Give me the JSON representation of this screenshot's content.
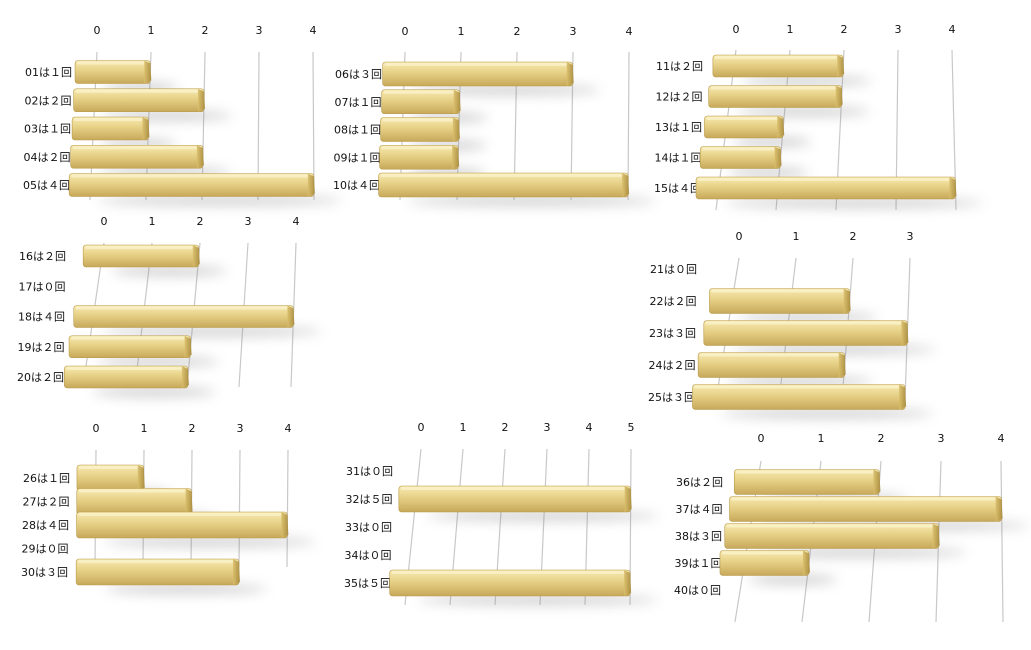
{
  "colors": {
    "bar_light": "#F5E6A6",
    "bar_mid": "#E2CC7A",
    "bar_dark": "#B99A49",
    "grid": "#C8C8C8",
    "shadow": "#7a7a7a",
    "text": "#111111"
  },
  "chart_data": [
    {
      "type": "bar",
      "orientation": "horizontal",
      "categories": [
        "01は１回",
        "02は２回",
        "03は１回",
        "04は２回",
        "05は４回"
      ],
      "values": [
        1,
        2,
        1,
        2,
        4
      ],
      "xlim": [
        0,
        4
      ],
      "ticks": [
        "0",
        "1",
        "2",
        "3",
        "4"
      ]
    },
    {
      "type": "bar",
      "orientation": "horizontal",
      "categories": [
        "06は３回",
        "07は１回",
        "08は１回",
        "09は１回",
        "10は４回"
      ],
      "values": [
        3,
        1,
        1,
        1,
        4
      ],
      "xlim": [
        0,
        4
      ],
      "ticks": [
        "0",
        "1",
        "2",
        "3",
        "4"
      ]
    },
    {
      "type": "bar",
      "orientation": "horizontal",
      "categories": [
        "11は２回",
        "12は２回",
        "13は１回",
        "14は１回",
        "15は４回"
      ],
      "values": [
        2,
        2,
        1,
        1,
        4
      ],
      "xlim": [
        0,
        4
      ],
      "ticks": [
        "0",
        "1",
        "2",
        "3",
        "4"
      ]
    },
    {
      "type": "bar",
      "orientation": "horizontal",
      "categories": [
        "16は２回",
        "17は０回",
        "18は４回",
        "19は２回",
        "20は２回"
      ],
      "values": [
        2,
        0,
        4,
        2,
        2
      ],
      "xlim": [
        0,
        4
      ],
      "ticks": [
        "0",
        "1",
        "2",
        "3",
        "4"
      ]
    },
    {
      "type": "bar",
      "orientation": "horizontal",
      "categories": [
        "21は０回",
        "22は２回",
        "23は３回",
        "24は２回",
        "25は３回"
      ],
      "values": [
        0,
        2,
        3,
        2,
        3
      ],
      "xlim": [
        0,
        3
      ],
      "ticks": [
        "0",
        "1",
        "2",
        "3"
      ]
    },
    {
      "type": "bar",
      "orientation": "horizontal",
      "categories": [
        "26は１回",
        "27は２回",
        "28は４回",
        "29は０回",
        "30は３回"
      ],
      "values": [
        1,
        2,
        4,
        0,
        3
      ],
      "xlim": [
        0,
        4
      ],
      "ticks": [
        "0",
        "1",
        "2",
        "3",
        "4"
      ]
    },
    {
      "type": "bar",
      "orientation": "horizontal",
      "categories": [
        "31は０回",
        "32は５回",
        "33は０回",
        "34は０回",
        "35は５回"
      ],
      "values": [
        0,
        5,
        0,
        0,
        5
      ],
      "xlim": [
        0,
        5
      ],
      "ticks": [
        "0",
        "1",
        "2",
        "3",
        "4",
        "5"
      ]
    },
    {
      "type": "bar",
      "orientation": "horizontal",
      "categories": [
        "36は２回",
        "37は４回",
        "38は３回",
        "39は１回",
        "40は０回"
      ],
      "values": [
        2,
        4,
        3,
        1,
        0
      ],
      "xlim": [
        0,
        4
      ],
      "ticks": [
        "0",
        "1",
        "2",
        "3",
        "4"
      ]
    }
  ]
}
